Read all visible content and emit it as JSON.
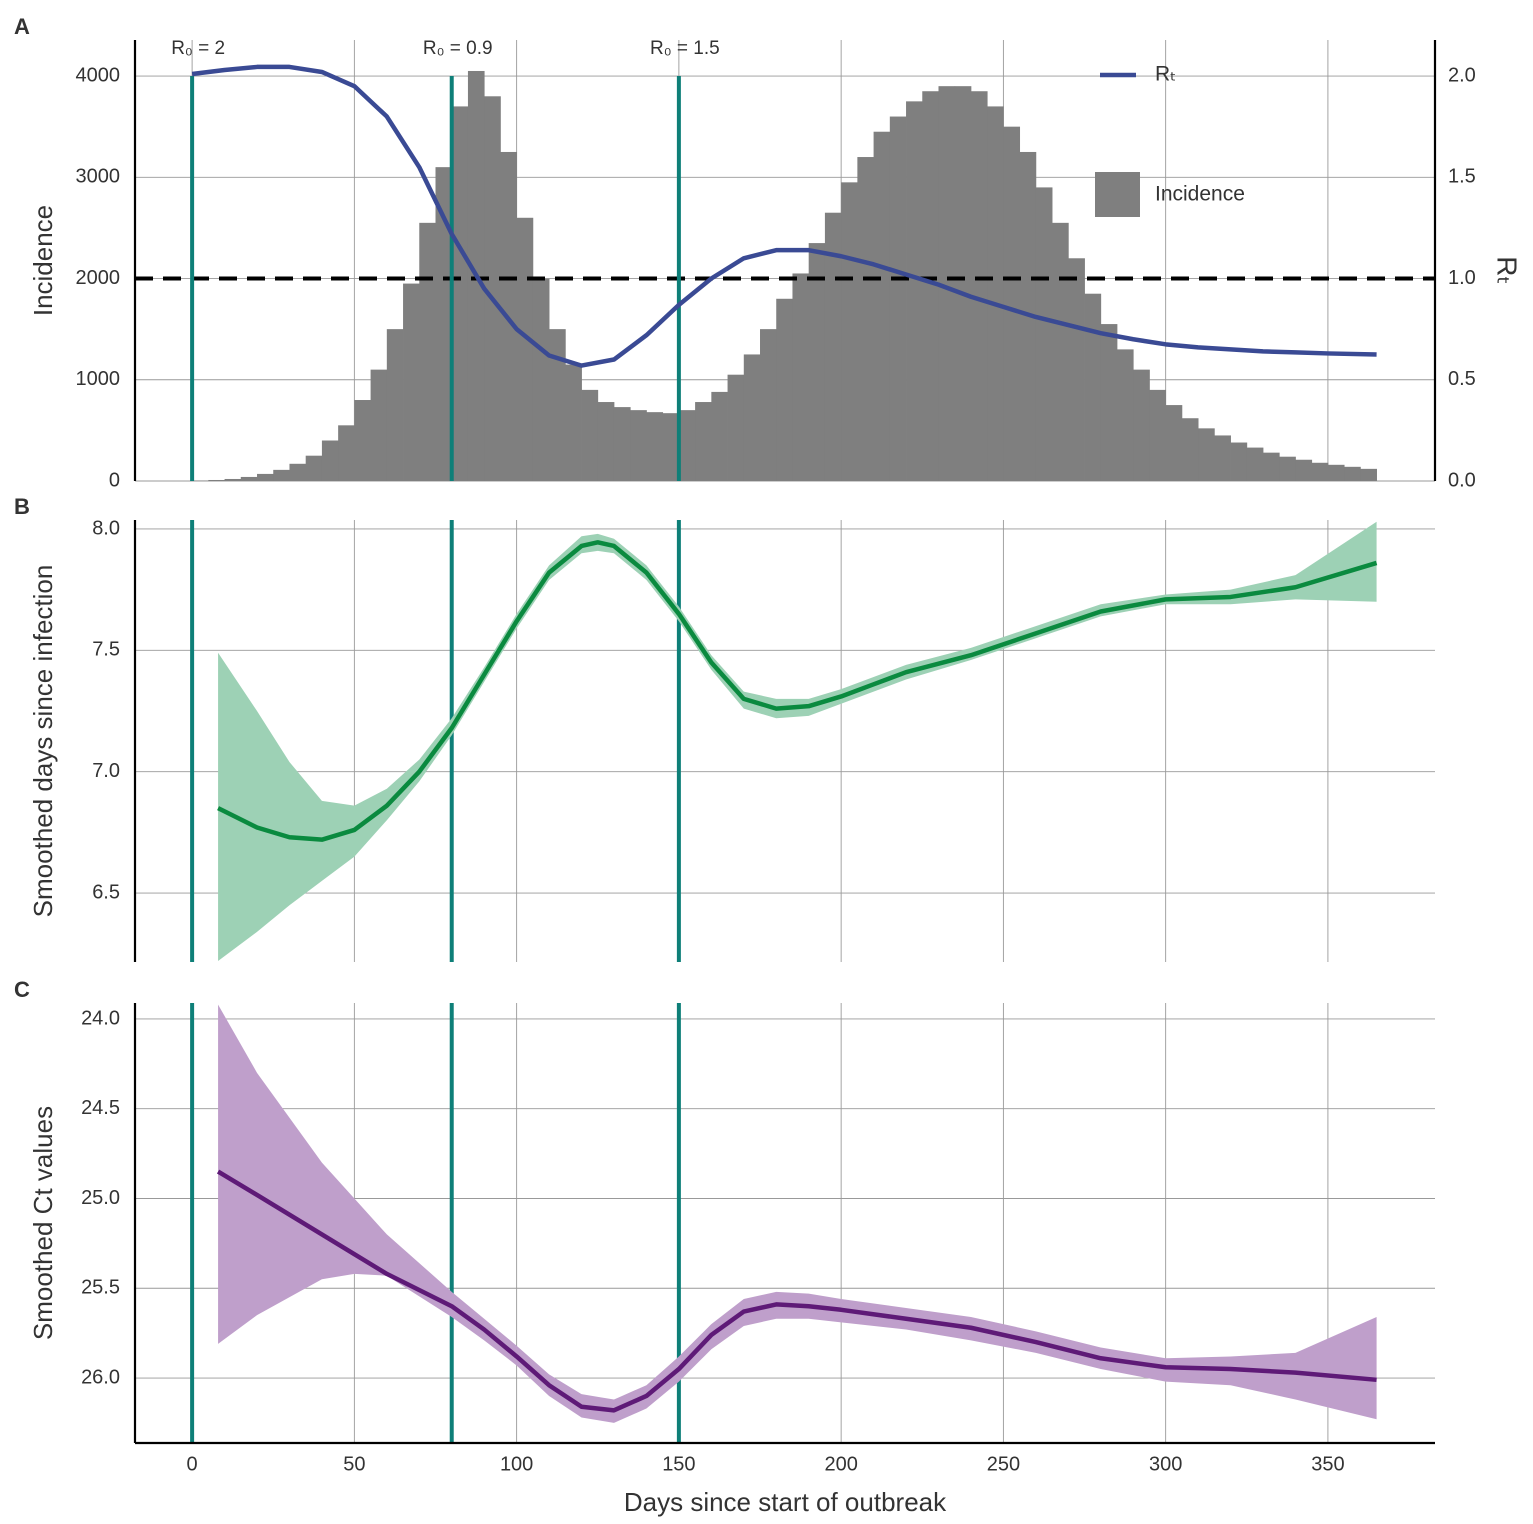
{
  "chart_data": [
    {
      "type": "histogram",
      "panel_label": "A",
      "name": "Incidence",
      "color": "#7f7f7f",
      "ylabel": "Incidence",
      "y2label": "Rₜ",
      "bins": [
        0,
        5,
        10,
        15,
        20,
        25,
        30,
        35,
        40,
        45,
        50,
        55,
        60,
        65,
        70,
        75,
        80,
        85,
        90,
        95,
        100,
        105,
        110,
        115,
        120,
        125,
        130,
        135,
        140,
        145,
        150,
        155,
        160,
        165,
        170,
        175,
        180,
        185,
        190,
        195,
        200,
        205,
        210,
        215,
        220,
        225,
        230,
        235,
        240,
        245,
        250,
        255,
        260,
        265,
        270,
        275,
        280,
        285,
        290,
        295,
        300,
        305,
        310,
        315,
        320,
        325,
        330,
        335,
        340,
        345,
        350,
        355,
        360,
        365
      ],
      "counts": [
        5,
        10,
        20,
        40,
        70,
        110,
        170,
        250,
        400,
        550,
        800,
        1100,
        1500,
        1950,
        2550,
        3100,
        3700,
        4050,
        3800,
        3250,
        2600,
        2000,
        1500,
        1150,
        900,
        780,
        730,
        700,
        680,
        670,
        700,
        780,
        880,
        1050,
        1250,
        1500,
        1800,
        2050,
        2350,
        2650,
        2950,
        3200,
        3450,
        3600,
        3750,
        3850,
        3900,
        3900,
        3850,
        3700,
        3500,
        3250,
        2900,
        2550,
        2200,
        1850,
        1550,
        1300,
        1100,
        900,
        750,
        620,
        520,
        450,
        380,
        330,
        280,
        240,
        210,
        180,
        160,
        140,
        120
      ],
      "xlim": [
        -17.6,
        383
      ],
      "ylim": [
        0,
        4356
      ],
      "yticks": [
        0,
        1000,
        2000,
        3000,
        4000
      ],
      "y2lim": [
        0,
        2.178
      ],
      "y2ticks": [
        {
          "value": 0,
          "label": "0.0"
        },
        0.5,
        {
          "value": 1,
          "label": "1.0"
        },
        1.5,
        {
          "value": 2,
          "label": "2.0"
        }
      ],
      "series": [
        {
          "name": "Rₜ",
          "color": "#3a4a94",
          "axis": "y2",
          "x": [
            0,
            10,
            20,
            30,
            40,
            50,
            60,
            70,
            80,
            90,
            100,
            110,
            120,
            130,
            140,
            150,
            160,
            170,
            180,
            190,
            200,
            210,
            220,
            230,
            240,
            250,
            260,
            270,
            280,
            290,
            300,
            310,
            320,
            330,
            340,
            350,
            365
          ],
          "values": [
            2.01,
            2.03,
            2.045,
            2.045,
            2.02,
            1.95,
            1.8,
            1.55,
            1.22,
            0.95,
            0.75,
            0.62,
            0.57,
            0.6,
            0.72,
            0.87,
            1.0,
            1.1,
            1.14,
            1.14,
            1.11,
            1.07,
            1.02,
            0.97,
            0.91,
            0.86,
            0.81,
            0.77,
            0.73,
            0.7,
            0.675,
            0.66,
            0.65,
            0.64,
            0.635,
            0.63,
            0.625
          ]
        }
      ],
      "hline": {
        "axis": "y2",
        "value": 1
      },
      "vlines": [
        {
          "x": 0,
          "label": "R₀ = 2"
        },
        {
          "x": 80,
          "label": "R₀ = 0.9"
        },
        {
          "x": 150,
          "label": "R₀ = 1.5"
        }
      ],
      "vline_color": "#0e7f78",
      "grid": true,
      "legend": "top-right"
    },
    {
      "type": "line",
      "panel_label": "B",
      "ylabel": "Smoothed days since infection",
      "xlim": [
        -17.6,
        383
      ],
      "ylim": [
        6.216,
        8.037
      ],
      "yticks": [
        6.5,
        {
          "value": 7,
          "label": "7.0"
        },
        7.5,
        {
          "value": 8,
          "label": "8.0"
        }
      ],
      "vlines": [
        {
          "x": 0
        },
        {
          "x": 80
        },
        {
          "x": 150
        }
      ],
      "vline_color": "#0e7f78",
      "grid": true,
      "series": [
        {
          "color": "#0a8a3f",
          "band_color": "#9dd1b5",
          "x": [
            8,
            20,
            30,
            40,
            50,
            60,
            70,
            80,
            90,
            100,
            110,
            120,
            125,
            130,
            140,
            150,
            160,
            170,
            180,
            190,
            200,
            210,
            220,
            240,
            260,
            280,
            300,
            320,
            340,
            365
          ],
          "values": [
            6.85,
            6.77,
            6.73,
            6.72,
            6.76,
            6.86,
            7.0,
            7.18,
            7.4,
            7.62,
            7.82,
            7.93,
            7.945,
            7.93,
            7.82,
            7.65,
            7.45,
            7.3,
            7.26,
            7.27,
            7.31,
            7.36,
            7.41,
            7.48,
            7.57,
            7.66,
            7.71,
            7.72,
            7.76,
            7.86
          ],
          "lower": [
            6.22,
            6.34,
            6.45,
            6.55,
            6.65,
            6.8,
            6.96,
            7.15,
            7.37,
            7.59,
            7.79,
            7.9,
            7.91,
            7.9,
            7.79,
            7.62,
            7.42,
            7.26,
            7.22,
            7.23,
            7.28,
            7.33,
            7.38,
            7.46,
            7.55,
            7.64,
            7.69,
            7.69,
            7.71,
            7.7
          ],
          "upper": [
            7.49,
            7.25,
            7.04,
            6.88,
            6.86,
            6.93,
            7.05,
            7.22,
            7.43,
            7.65,
            7.85,
            7.97,
            7.98,
            7.96,
            7.85,
            7.68,
            7.48,
            7.33,
            7.3,
            7.3,
            7.34,
            7.39,
            7.44,
            7.51,
            7.6,
            7.69,
            7.73,
            7.75,
            7.81,
            8.03
          ]
        }
      ]
    },
    {
      "type": "line",
      "panel_label": "C",
      "ylabel": "Smoothed Ct values",
      "xlabel": "Days since start of outbreak",
      "xlim": [
        -17.6,
        383
      ],
      "xticks": [
        0,
        50,
        100,
        150,
        200,
        250,
        300,
        350
      ],
      "ylim": [
        23.911,
        26.362
      ],
      "y_reverse": true,
      "yticks": [
        {
          "value": 24,
          "label": "24.0"
        },
        24.5,
        {
          "value": 25,
          "label": "25.0"
        },
        25.5,
        {
          "value": 26,
          "label": "26.0"
        }
      ],
      "vlines": [
        {
          "x": 0
        },
        {
          "x": 80
        },
        {
          "x": 150
        }
      ],
      "vline_color": "#0e7f78",
      "grid": true,
      "series": [
        {
          "color": "#5e1a77",
          "band_color": "#bf9fcb",
          "x": [
            8,
            20,
            40,
            50,
            60,
            80,
            90,
            100,
            110,
            120,
            130,
            140,
            150,
            160,
            170,
            180,
            190,
            200,
            220,
            240,
            260,
            280,
            300,
            320,
            340,
            365
          ],
          "values": [
            24.85,
            24.98,
            25.2,
            25.31,
            25.42,
            25.6,
            25.73,
            25.88,
            26.04,
            26.16,
            26.18,
            26.1,
            25.95,
            25.76,
            25.63,
            25.59,
            25.6,
            25.62,
            25.67,
            25.72,
            25.8,
            25.89,
            25.94,
            25.95,
            25.97,
            26.01
          ],
          "lower": [
            23.92,
            24.3,
            24.8,
            25.0,
            25.2,
            25.52,
            25.67,
            25.82,
            25.98,
            26.09,
            26.12,
            26.04,
            25.88,
            25.7,
            25.56,
            25.52,
            25.53,
            25.56,
            25.61,
            25.66,
            25.74,
            25.83,
            25.89,
            25.88,
            25.86,
            25.66
          ],
          "upper": [
            25.81,
            25.65,
            25.45,
            25.42,
            25.43,
            25.66,
            25.79,
            25.93,
            26.1,
            26.22,
            26.25,
            26.17,
            26.02,
            25.84,
            25.71,
            25.67,
            25.67,
            25.69,
            25.73,
            25.79,
            25.86,
            25.95,
            26.02,
            26.04,
            26.12,
            26.23
          ]
        }
      ]
    }
  ]
}
